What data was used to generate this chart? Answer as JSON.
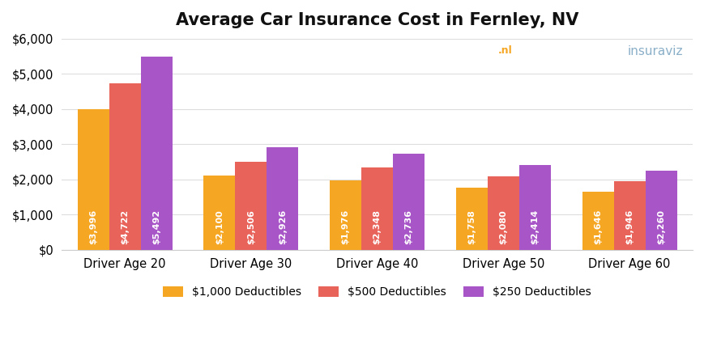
{
  "title": "Average Car Insurance Cost in Fernley, NV",
  "categories": [
    "Driver Age 20",
    "Driver Age 30",
    "Driver Age 40",
    "Driver Age 50",
    "Driver Age 60"
  ],
  "series": [
    {
      "label": "$1,000 Deductibles",
      "color": "#F5A623",
      "values": [
        3996,
        2100,
        1976,
        1758,
        1646
      ]
    },
    {
      "label": "$500 Deductibles",
      "color": "#E8635A",
      "values": [
        4722,
        2506,
        2348,
        2080,
        1946
      ]
    },
    {
      "label": "$250 Deductibles",
      "color": "#A855C8",
      "values": [
        5492,
        2926,
        2736,
        2414,
        2260
      ]
    }
  ],
  "ylim": [
    0,
    6000
  ],
  "yticks": [
    0,
    1000,
    2000,
    3000,
    4000,
    5000,
    6000
  ],
  "ytick_labels": [
    "$0",
    "$1,000",
    "$2,000",
    "$3,000",
    "$4,000",
    "$5,000",
    "$6,000"
  ],
  "bar_width": 0.25,
  "background_color": "#FFFFFF",
  "grid_color": "#DDDDDD",
  "label_color": "#FFFFFF",
  "label_fontsize": 8.0,
  "title_fontsize": 15,
  "legend_fontsize": 10,
  "axis_fontsize": 10.5
}
